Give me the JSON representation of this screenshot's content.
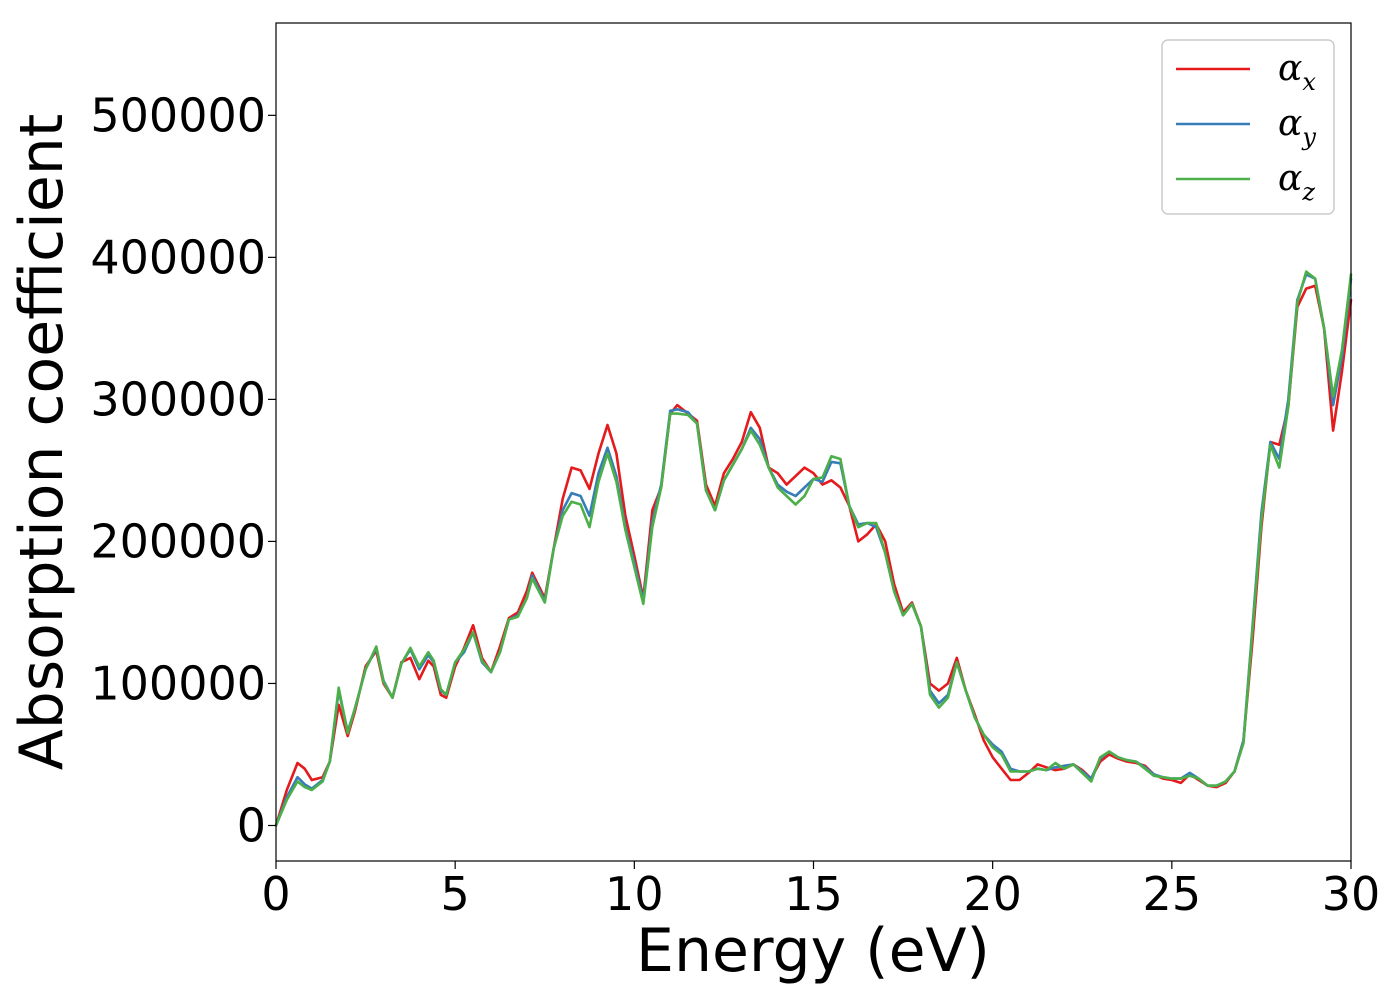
{
  "chart_data": {
    "type": "line",
    "title": "",
    "xlabel": "Energy (eV)",
    "ylabel": "Absorption coefficient",
    "xlim": [
      0,
      30
    ],
    "ylim": [
      -25000,
      565000
    ],
    "x_ticks": [
      0,
      5,
      10,
      15,
      20,
      25,
      30
    ],
    "x_tick_labels": [
      "0",
      "5",
      "10",
      "15",
      "20",
      "25",
      "30"
    ],
    "y_ticks": [
      0,
      100000,
      200000,
      300000,
      400000,
      500000
    ],
    "y_tick_labels": [
      "0",
      "100000",
      "200000",
      "300000",
      "400000",
      "500000"
    ],
    "grid": false,
    "legend": {
      "position": "top-right",
      "entries": [
        {
          "symbol": "α",
          "sub": "x"
        },
        {
          "symbol": "α",
          "sub": "y"
        },
        {
          "symbol": "α",
          "sub": "z"
        }
      ]
    },
    "series": [
      {
        "color": "#e41a1c",
        "x": [
          0,
          0.3,
          0.6,
          0.8,
          1.0,
          1.3,
          1.5,
          1.75,
          2.0,
          2.2,
          2.5,
          2.8,
          3.0,
          3.25,
          3.5,
          3.75,
          4.0,
          4.25,
          4.4,
          4.6,
          4.75,
          5.0,
          5.25,
          5.5,
          5.75,
          6.0,
          6.25,
          6.5,
          6.75,
          7.0,
          7.15,
          7.5,
          7.75,
          8.0,
          8.25,
          8.5,
          8.75,
          9.0,
          9.25,
          9.5,
          9.75,
          10.0,
          10.25,
          10.5,
          10.75,
          11.0,
          11.2,
          11.5,
          11.75,
          12.0,
          12.25,
          12.5,
          12.75,
          13.0,
          13.25,
          13.5,
          13.75,
          14.0,
          14.25,
          14.5,
          14.75,
          15.0,
          15.25,
          15.5,
          15.75,
          16.0,
          16.25,
          16.5,
          16.75,
          17.0,
          17.25,
          17.5,
          17.75,
          18.0,
          18.25,
          18.5,
          18.75,
          19.0,
          19.25,
          19.5,
          19.75,
          20.0,
          20.25,
          20.5,
          20.75,
          21.0,
          21.25,
          21.5,
          21.75,
          22.0,
          22.25,
          22.5,
          22.75,
          23.0,
          23.25,
          23.5,
          23.75,
          24.0,
          24.25,
          24.5,
          24.75,
          25.0,
          25.25,
          25.5,
          25.75,
          26.0,
          26.25,
          26.5,
          26.75,
          27.0,
          27.25,
          27.5,
          27.75,
          28.0,
          28.25,
          28.5,
          28.75,
          29.0,
          29.25,
          29.5,
          29.75,
          30.0
        ],
        "y": [
          0,
          25000,
          44000,
          40000,
          32000,
          34000,
          45000,
          85000,
          63000,
          80000,
          112000,
          123000,
          100000,
          90000,
          115000,
          118000,
          103000,
          116000,
          112000,
          92000,
          90000,
          112000,
          125000,
          141000,
          118000,
          108000,
          126000,
          146000,
          150000,
          165000,
          178000,
          160000,
          195000,
          230000,
          252000,
          250000,
          237000,
          262000,
          282000,
          262000,
          218000,
          190000,
          160000,
          222000,
          238000,
          290000,
          296000,
          290000,
          285000,
          240000,
          225000,
          248000,
          258000,
          270000,
          291000,
          280000,
          252000,
          248000,
          240000,
          246000,
          252000,
          248000,
          240000,
          243000,
          238000,
          225000,
          200000,
          205000,
          212000,
          200000,
          170000,
          150000,
          157000,
          140000,
          100000,
          95000,
          100000,
          118000,
          95000,
          78000,
          60000,
          48000,
          40000,
          32000,
          32000,
          37000,
          43000,
          41000,
          39000,
          40000,
          43000,
          39000,
          33000,
          45000,
          50000,
          47000,
          45000,
          44000,
          42000,
          36000,
          33000,
          32000,
          30000,
          36000,
          32000,
          28000,
          27000,
          30000,
          38000,
          60000,
          130000,
          210000,
          270000,
          268000,
          295000,
          365000,
          378000,
          380000,
          350000,
          278000,
          320000,
          370000
        ]
      },
      {
        "color": "#377eb8",
        "x": [
          0,
          0.3,
          0.6,
          0.8,
          1.0,
          1.3,
          1.5,
          1.75,
          2.0,
          2.2,
          2.5,
          2.8,
          3.0,
          3.25,
          3.5,
          3.75,
          4.0,
          4.25,
          4.4,
          4.6,
          4.75,
          5.0,
          5.25,
          5.5,
          5.75,
          6.0,
          6.25,
          6.5,
          6.75,
          7.0,
          7.15,
          7.5,
          7.75,
          8.0,
          8.25,
          8.5,
          8.75,
          9.0,
          9.25,
          9.5,
          9.75,
          10.0,
          10.25,
          10.5,
          10.75,
          11.0,
          11.2,
          11.5,
          11.75,
          12.0,
          12.25,
          12.5,
          12.75,
          13.0,
          13.25,
          13.5,
          13.75,
          14.0,
          14.25,
          14.5,
          14.75,
          15.0,
          15.25,
          15.5,
          15.75,
          16.0,
          16.25,
          16.5,
          16.75,
          17.0,
          17.25,
          17.5,
          17.75,
          18.0,
          18.25,
          18.5,
          18.75,
          19.0,
          19.25,
          19.5,
          19.75,
          20.0,
          20.25,
          20.5,
          20.75,
          21.0,
          21.25,
          21.5,
          21.75,
          22.0,
          22.25,
          22.5,
          22.75,
          23.0,
          23.25,
          23.5,
          23.75,
          24.0,
          24.25,
          24.5,
          24.75,
          25.0,
          25.25,
          25.5,
          25.75,
          26.0,
          26.25,
          26.5,
          26.75,
          27.0,
          27.25,
          27.5,
          27.75,
          28.0,
          28.25,
          28.5,
          28.75,
          29.0,
          29.25,
          29.5,
          29.75,
          30.0
        ],
        "y": [
          0,
          20000,
          34000,
          29000,
          26000,
          32000,
          45000,
          95000,
          66000,
          82000,
          110000,
          125000,
          102000,
          90000,
          114000,
          124000,
          110000,
          120000,
          115000,
          95000,
          92000,
          115000,
          122000,
          136000,
          115000,
          108000,
          122000,
          145000,
          148000,
          160000,
          176000,
          158000,
          195000,
          222000,
          234000,
          232000,
          218000,
          248000,
          266000,
          246000,
          210000,
          185000,
          158000,
          214000,
          240000,
          292000,
          293000,
          291000,
          283000,
          236000,
          222000,
          243000,
          254000,
          265000,
          280000,
          272000,
          252000,
          240000,
          235000,
          232000,
          238000,
          244000,
          242000,
          256000,
          255000,
          225000,
          212000,
          213000,
          210000,
          192000,
          165000,
          148000,
          156000,
          140000,
          95000,
          86000,
          92000,
          115000,
          95000,
          76000,
          64000,
          57000,
          52000,
          40000,
          38000,
          38000,
          40000,
          39000,
          41000,
          42000,
          43000,
          38000,
          33000,
          47000,
          52000,
          48000,
          46000,
          45000,
          41000,
          36000,
          34000,
          33000,
          33000,
          37000,
          33000,
          28000,
          28000,
          31000,
          38000,
          60000,
          140000,
          220000,
          270000,
          258000,
          300000,
          370000,
          388000,
          385000,
          350000,
          296000,
          330000,
          385000
        ]
      },
      {
        "color": "#4daf4a",
        "x": [
          0,
          0.3,
          0.6,
          0.8,
          1.0,
          1.3,
          1.5,
          1.75,
          2.0,
          2.2,
          2.5,
          2.8,
          3.0,
          3.25,
          3.5,
          3.75,
          4.0,
          4.25,
          4.4,
          4.6,
          4.75,
          5.0,
          5.25,
          5.5,
          5.75,
          6.0,
          6.25,
          6.5,
          6.75,
          7.0,
          7.15,
          7.5,
          7.75,
          8.0,
          8.25,
          8.5,
          8.75,
          9.0,
          9.25,
          9.5,
          9.75,
          10.0,
          10.25,
          10.5,
          10.75,
          11.0,
          11.2,
          11.5,
          11.75,
          12.0,
          12.25,
          12.5,
          12.75,
          13.0,
          13.25,
          13.5,
          13.75,
          14.0,
          14.25,
          14.5,
          14.75,
          15.0,
          15.25,
          15.5,
          15.75,
          16.0,
          16.25,
          16.5,
          16.75,
          17.0,
          17.25,
          17.5,
          17.75,
          18.0,
          18.25,
          18.5,
          18.75,
          19.0,
          19.25,
          19.5,
          19.75,
          20.0,
          20.25,
          20.5,
          20.75,
          21.0,
          21.25,
          21.5,
          21.75,
          22.0,
          22.25,
          22.5,
          22.75,
          23.0,
          23.25,
          23.5,
          23.75,
          24.0,
          24.25,
          24.5,
          24.75,
          25.0,
          25.25,
          25.5,
          25.75,
          26.0,
          26.25,
          26.5,
          26.75,
          27.0,
          27.25,
          27.5,
          27.75,
          28.0,
          28.25,
          28.5,
          28.75,
          29.0,
          29.25,
          29.5,
          29.75,
          30.0
        ],
        "y": [
          0,
          18000,
          31000,
          27000,
          25000,
          31000,
          45000,
          97000,
          65000,
          82000,
          110000,
          126000,
          101000,
          90000,
          114000,
          125000,
          112000,
          122000,
          116000,
          96000,
          92000,
          115000,
          124000,
          136000,
          116000,
          108000,
          122000,
          145000,
          147000,
          160000,
          174000,
          157000,
          195000,
          218000,
          228000,
          226000,
          210000,
          242000,
          262000,
          242000,
          208000,
          182000,
          156000,
          210000,
          238000,
          290000,
          290000,
          289000,
          283000,
          236000,
          222000,
          243000,
          254000,
          265000,
          278000,
          268000,
          252000,
          238000,
          232000,
          226000,
          232000,
          244000,
          245000,
          260000,
          258000,
          225000,
          210000,
          213000,
          213000,
          192000,
          165000,
          148000,
          156000,
          140000,
          92000,
          83000,
          90000,
          115000,
          95000,
          76000,
          64000,
          55000,
          50000,
          38000,
          38000,
          38000,
          40000,
          39000,
          44000,
          40000,
          43000,
          37000,
          31000,
          48000,
          52000,
          48000,
          46000,
          45000,
          40000,
          35000,
          34000,
          33000,
          33000,
          35000,
          33000,
          28000,
          28000,
          31000,
          38000,
          58000,
          138000,
          215000,
          268000,
          252000,
          295000,
          368000,
          390000,
          385000,
          350000,
          302000,
          335000,
          388000
        ]
      }
    ]
  }
}
